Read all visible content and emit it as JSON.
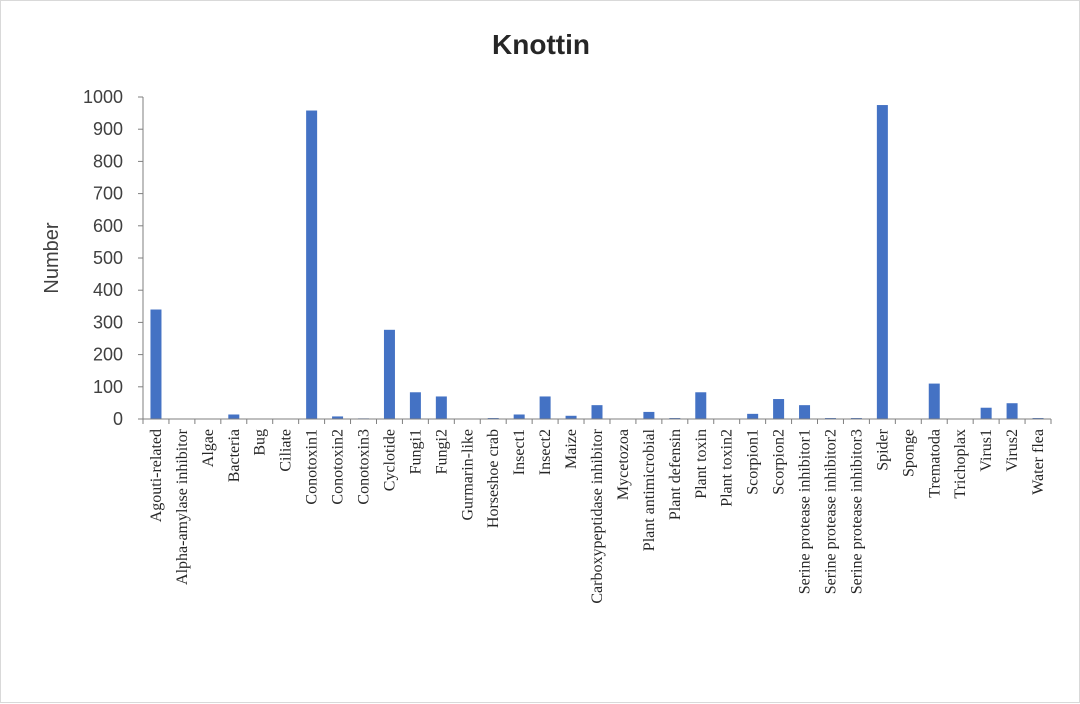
{
  "chart_data": {
    "type": "bar",
    "title": "Knottin",
    "xlabel": "",
    "ylabel": "Number",
    "ylim": [
      0,
      1000
    ],
    "yticks": [
      0,
      100,
      200,
      300,
      400,
      500,
      600,
      700,
      800,
      900,
      1000
    ],
    "grid": false,
    "legend": "none",
    "bar_color": "#4472c4",
    "categories": [
      "Agouti-related",
      "Alpha-amylase inhibitor",
      "Algae",
      "Bacteria",
      "Bug",
      "Ciliate",
      "Conotoxin1",
      "Conotoxin2",
      "Conotoxin3",
      "Cyclotide",
      "Fungi1",
      "Fungi2",
      "Gurmarin-like",
      "Horseshoe crab",
      "Insect1",
      "Insect2",
      "Maize",
      "Carboxypeptidase inhibitor",
      "Mycetozoa",
      "Plant antimicrobial",
      "Plant defensin",
      "Plant toxin",
      "Plant toxin2",
      "Scorpion1",
      "Scorpion2",
      "Serine protease inhibitor1",
      "Serine protease inhibitor2",
      "Serine protease inhibitor3",
      "Spider",
      "Sponge",
      "Trematoda",
      "Trichoplax",
      "Virus1",
      "Virus2",
      "Water flea"
    ],
    "values": [
      340,
      1,
      1,
      14,
      1,
      1,
      958,
      8,
      2,
      277,
      83,
      70,
      1,
      3,
      14,
      70,
      10,
      43,
      1,
      22,
      3,
      83,
      1,
      16,
      62,
      43,
      3,
      3,
      975,
      1,
      110,
      1,
      35,
      49,
      3
    ]
  }
}
